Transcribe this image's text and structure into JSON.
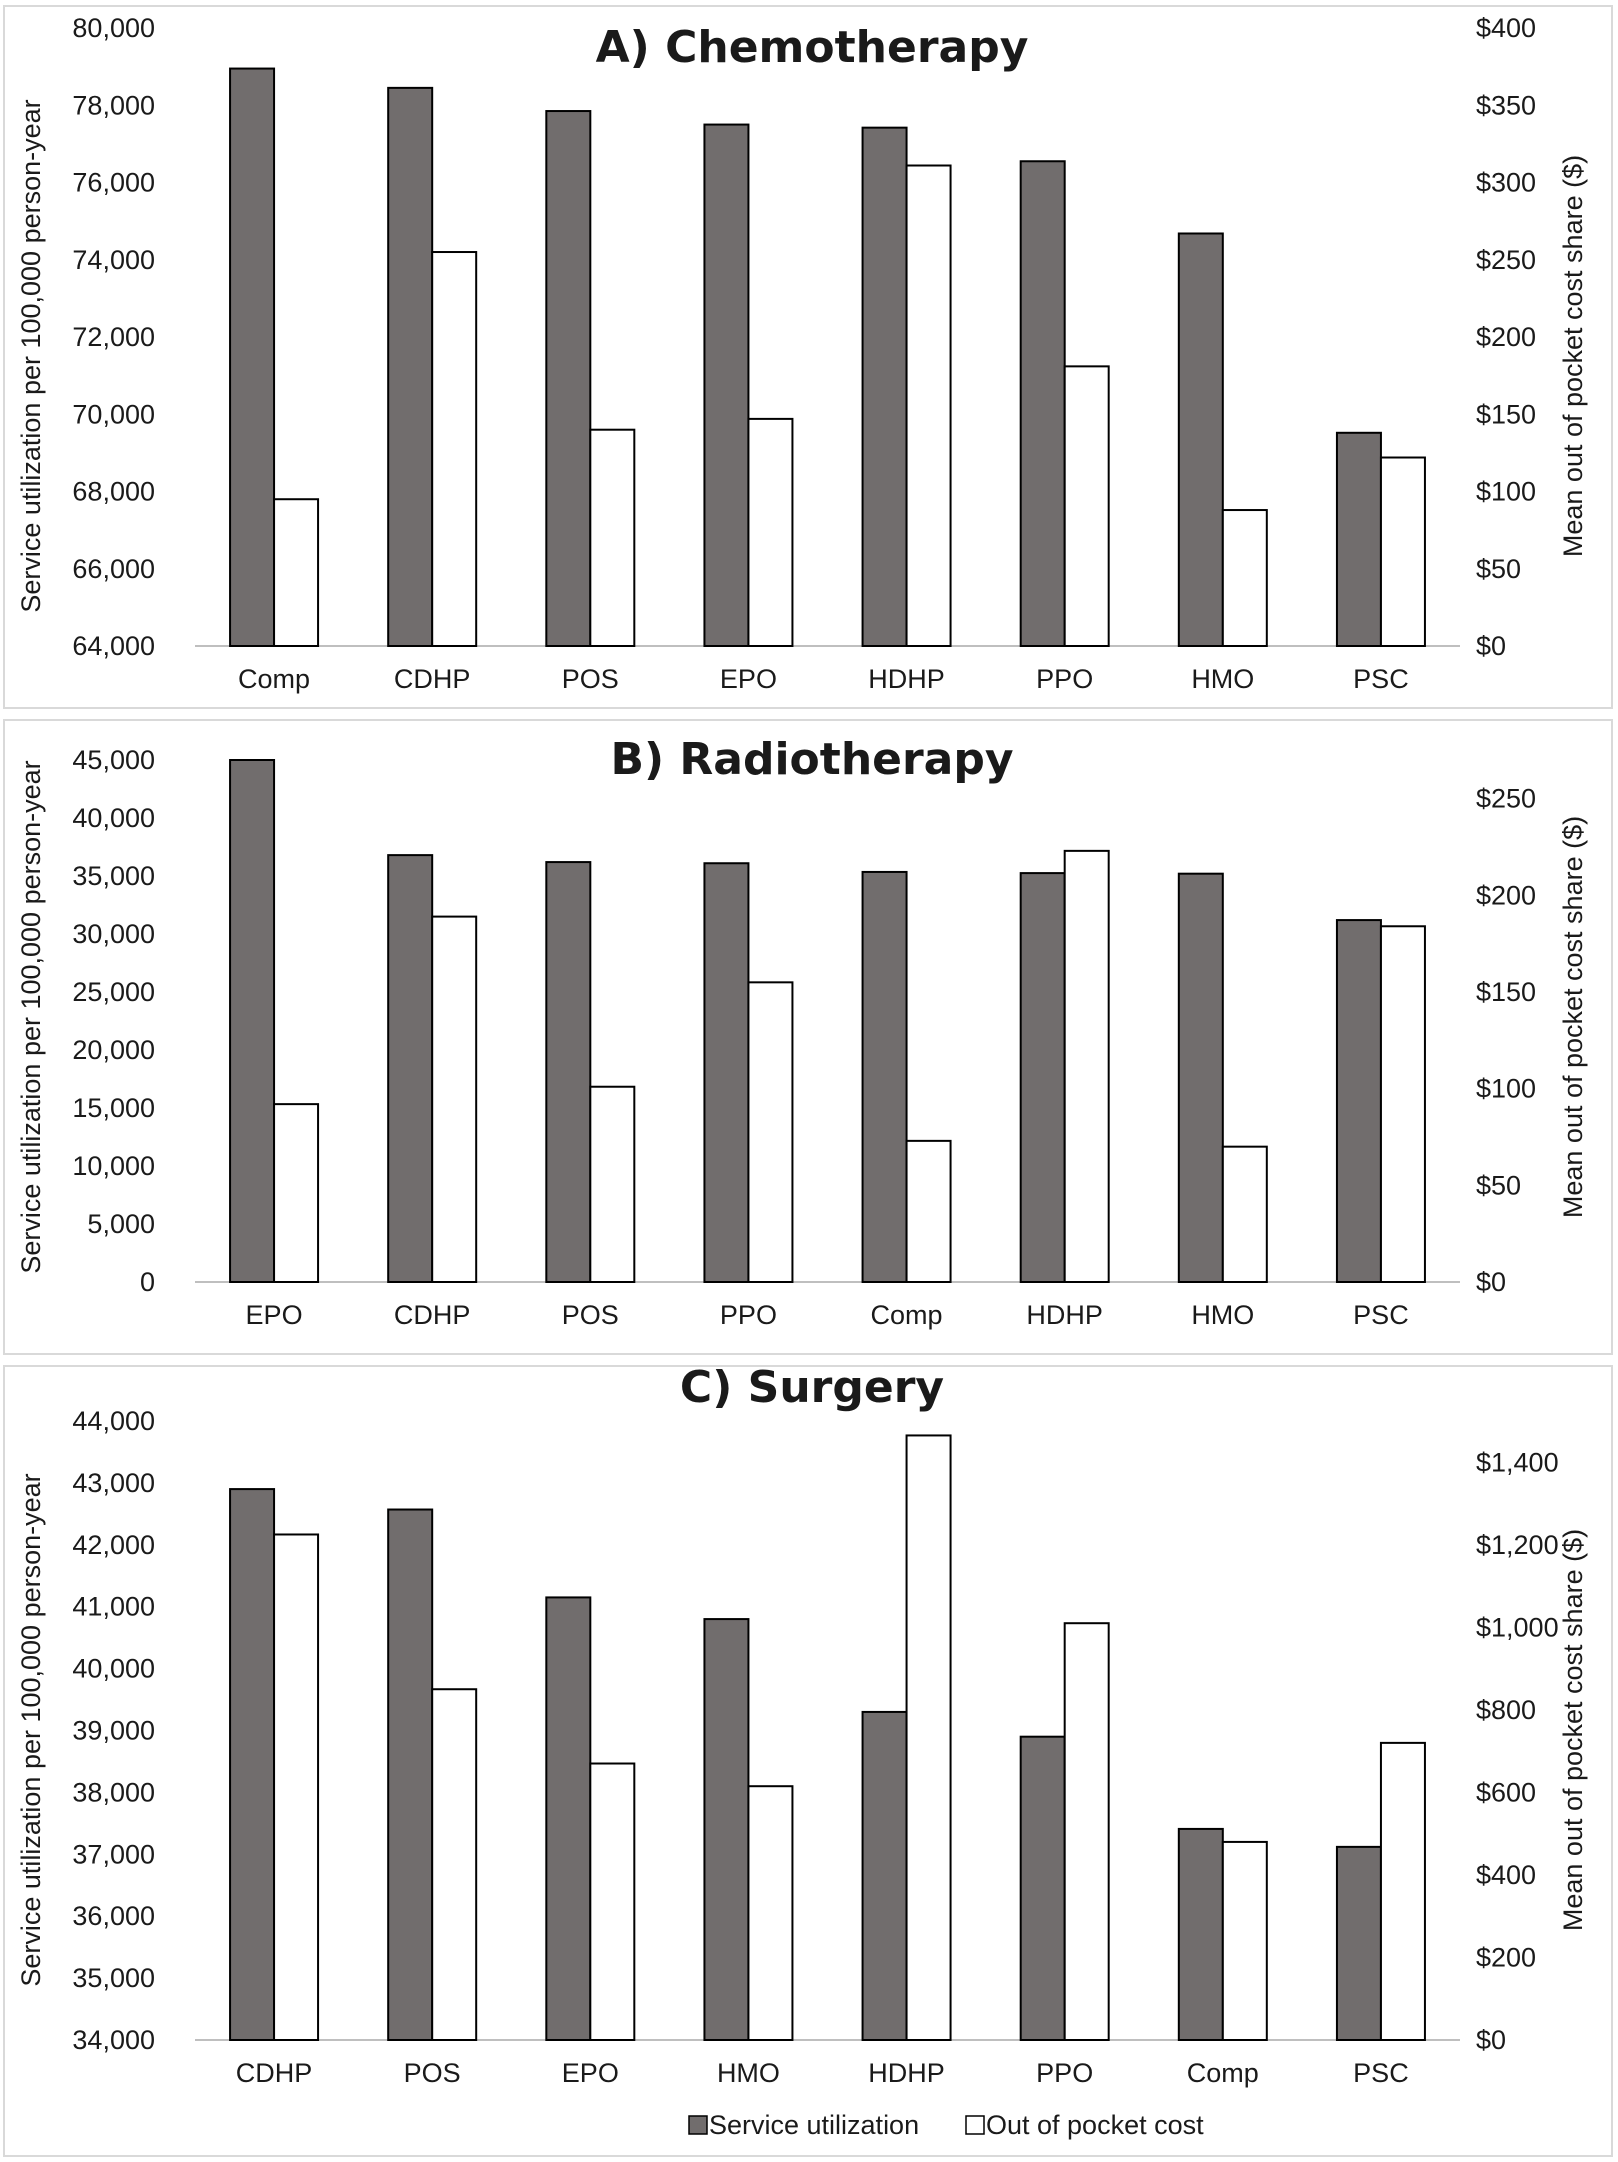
{
  "chart_data": [
    {
      "type": "bar",
      "title": "A) Chemotherapy",
      "categories": [
        "Comp",
        "CDHP",
        "POS",
        "EPO",
        "HDHP",
        "PPO",
        "HMO",
        "PSC"
      ],
      "ylabel": "Service utilization per 100,000 person-year",
      "y2label": "Mean out of pocket cost share ($)",
      "ylim": [
        64000,
        80000
      ],
      "y2lim": [
        0,
        400
      ],
      "yticks": [
        "64,000",
        "66,000",
        "68,000",
        "70,000",
        "72,000",
        "74,000",
        "76,000",
        "78,000",
        "80,000"
      ],
      "y2ticks": [
        "$0",
        "$50",
        "$100",
        "$150",
        "$200",
        "$250",
        "$300",
        "$350",
        "$400"
      ],
      "series": [
        {
          "name": "Service utilization",
          "axis": "left",
          "color": "#716d6d",
          "values": [
            78950,
            78450,
            77850,
            77500,
            77420,
            76550,
            74680,
            69520
          ]
        },
        {
          "name": "Out of pocket cost",
          "axis": "right",
          "color": "#ffffff",
          "values": [
            95,
            255,
            140,
            147,
            311,
            181,
            88,
            122
          ]
        }
      ]
    },
    {
      "type": "bar",
      "title": "B) Radiotherapy",
      "categories": [
        "EPO",
        "CDHP",
        "POS",
        "PPO",
        "Comp",
        "HDHP",
        "HMO",
        "PSC"
      ],
      "ylabel": "Service utilization per 100,000 person-year",
      "y2label": "Mean out of pocket cost share ($)",
      "ylim": [
        0,
        45000
      ],
      "y2lim": [
        0,
        270
      ],
      "yticks": [
        "0",
        "5,000",
        "10,000",
        "15,000",
        "20,000",
        "25,000",
        "30,000",
        "35,000",
        "40,000",
        "45,000"
      ],
      "y2ticks": [
        "$0",
        "$50",
        "$100",
        "$150",
        "$200",
        "$250"
      ],
      "series": [
        {
          "name": "Service utilization",
          "axis": "left",
          "color": "#716d6d",
          "values": [
            45000,
            36800,
            36200,
            36100,
            35350,
            35250,
            35200,
            31200
          ]
        },
        {
          "name": "Out of pocket cost",
          "axis": "right",
          "color": "#ffffff",
          "values": [
            92,
            189,
            101,
            155,
            73,
            223,
            70,
            184
          ]
        }
      ]
    },
    {
      "type": "bar",
      "title": "C) Surgery",
      "categories": [
        "CDHP",
        "POS",
        "EPO",
        "HMO",
        "HDHP",
        "PPO",
        "Comp",
        "PSC"
      ],
      "ylabel": "Service utilization per 100,000 person-year",
      "y2label": "Mean out of pocket cost share ($)",
      "ylim": [
        34000,
        44000
      ],
      "y2lim": [
        0,
        1500
      ],
      "yticks": [
        "34,000",
        "35,000",
        "36,000",
        "37,000",
        "38,000",
        "39,000",
        "40,000",
        "41,000",
        "42,000",
        "43,000",
        "44,000"
      ],
      "y2ticks": [
        "$0",
        "$200",
        "$400",
        "$600",
        "$800",
        "$1,000",
        "$1,200",
        "$1,400"
      ],
      "series": [
        {
          "name": "Service utilization",
          "axis": "left",
          "color": "#716d6d",
          "values": [
            42900,
            42570,
            41150,
            40800,
            39300,
            38900,
            37410,
            37120
          ]
        },
        {
          "name": "Out of pocket cost",
          "axis": "right",
          "color": "#ffffff",
          "values": [
            1225,
            850,
            670,
            615,
            1465,
            1010,
            480,
            720
          ]
        }
      ]
    }
  ],
  "legend": {
    "position": "bottom-center",
    "items": [
      {
        "label": "Service utilization",
        "color": "#716d6d"
      },
      {
        "label": "Out of pocket cost",
        "color": "#ffffff"
      }
    ]
  }
}
